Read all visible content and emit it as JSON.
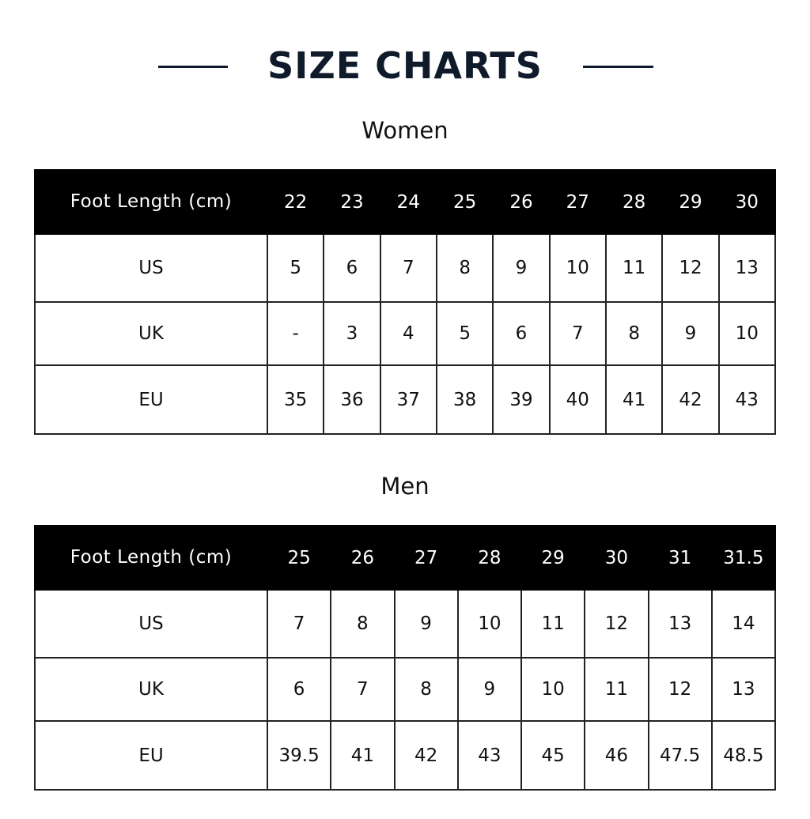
{
  "title": "SIZE CHARTS",
  "tables": [
    {
      "heading": "Women",
      "header_label": "Foot Length (cm)",
      "foot_lengths": [
        "22",
        "23",
        "24",
        "25",
        "26",
        "27",
        "28",
        "29",
        "30"
      ],
      "rows": [
        {
          "label": "US",
          "values": [
            "5",
            "6",
            "7",
            "8",
            "9",
            "10",
            "11",
            "12",
            "13"
          ]
        },
        {
          "label": "UK",
          "values": [
            "-",
            "3",
            "4",
            "5",
            "6",
            "7",
            "8",
            "9",
            "10"
          ]
        },
        {
          "label": "EU",
          "values": [
            "35",
            "36",
            "37",
            "38",
            "39",
            "40",
            "41",
            "42",
            "43"
          ]
        }
      ]
    },
    {
      "heading": "Men",
      "header_label": "Foot Length (cm)",
      "foot_lengths": [
        "25",
        "26",
        "27",
        "28",
        "29",
        "30",
        "31",
        "31.5"
      ],
      "rows": [
        {
          "label": "US",
          "values": [
            "7",
            "8",
            "9",
            "10",
            "11",
            "12",
            "13",
            "14"
          ]
        },
        {
          "label": "UK",
          "values": [
            "6",
            "7",
            "8",
            "9",
            "10",
            "11",
            "12",
            "13"
          ]
        },
        {
          "label": "EU",
          "values": [
            "39.5",
            "41",
            "42",
            "43",
            "45",
            "46",
            "47.5",
            "48.5"
          ]
        }
      ]
    }
  ],
  "colors": {
    "title": "#0f1a2b",
    "header_bg": "#000000",
    "header_text": "#ffffff"
  }
}
